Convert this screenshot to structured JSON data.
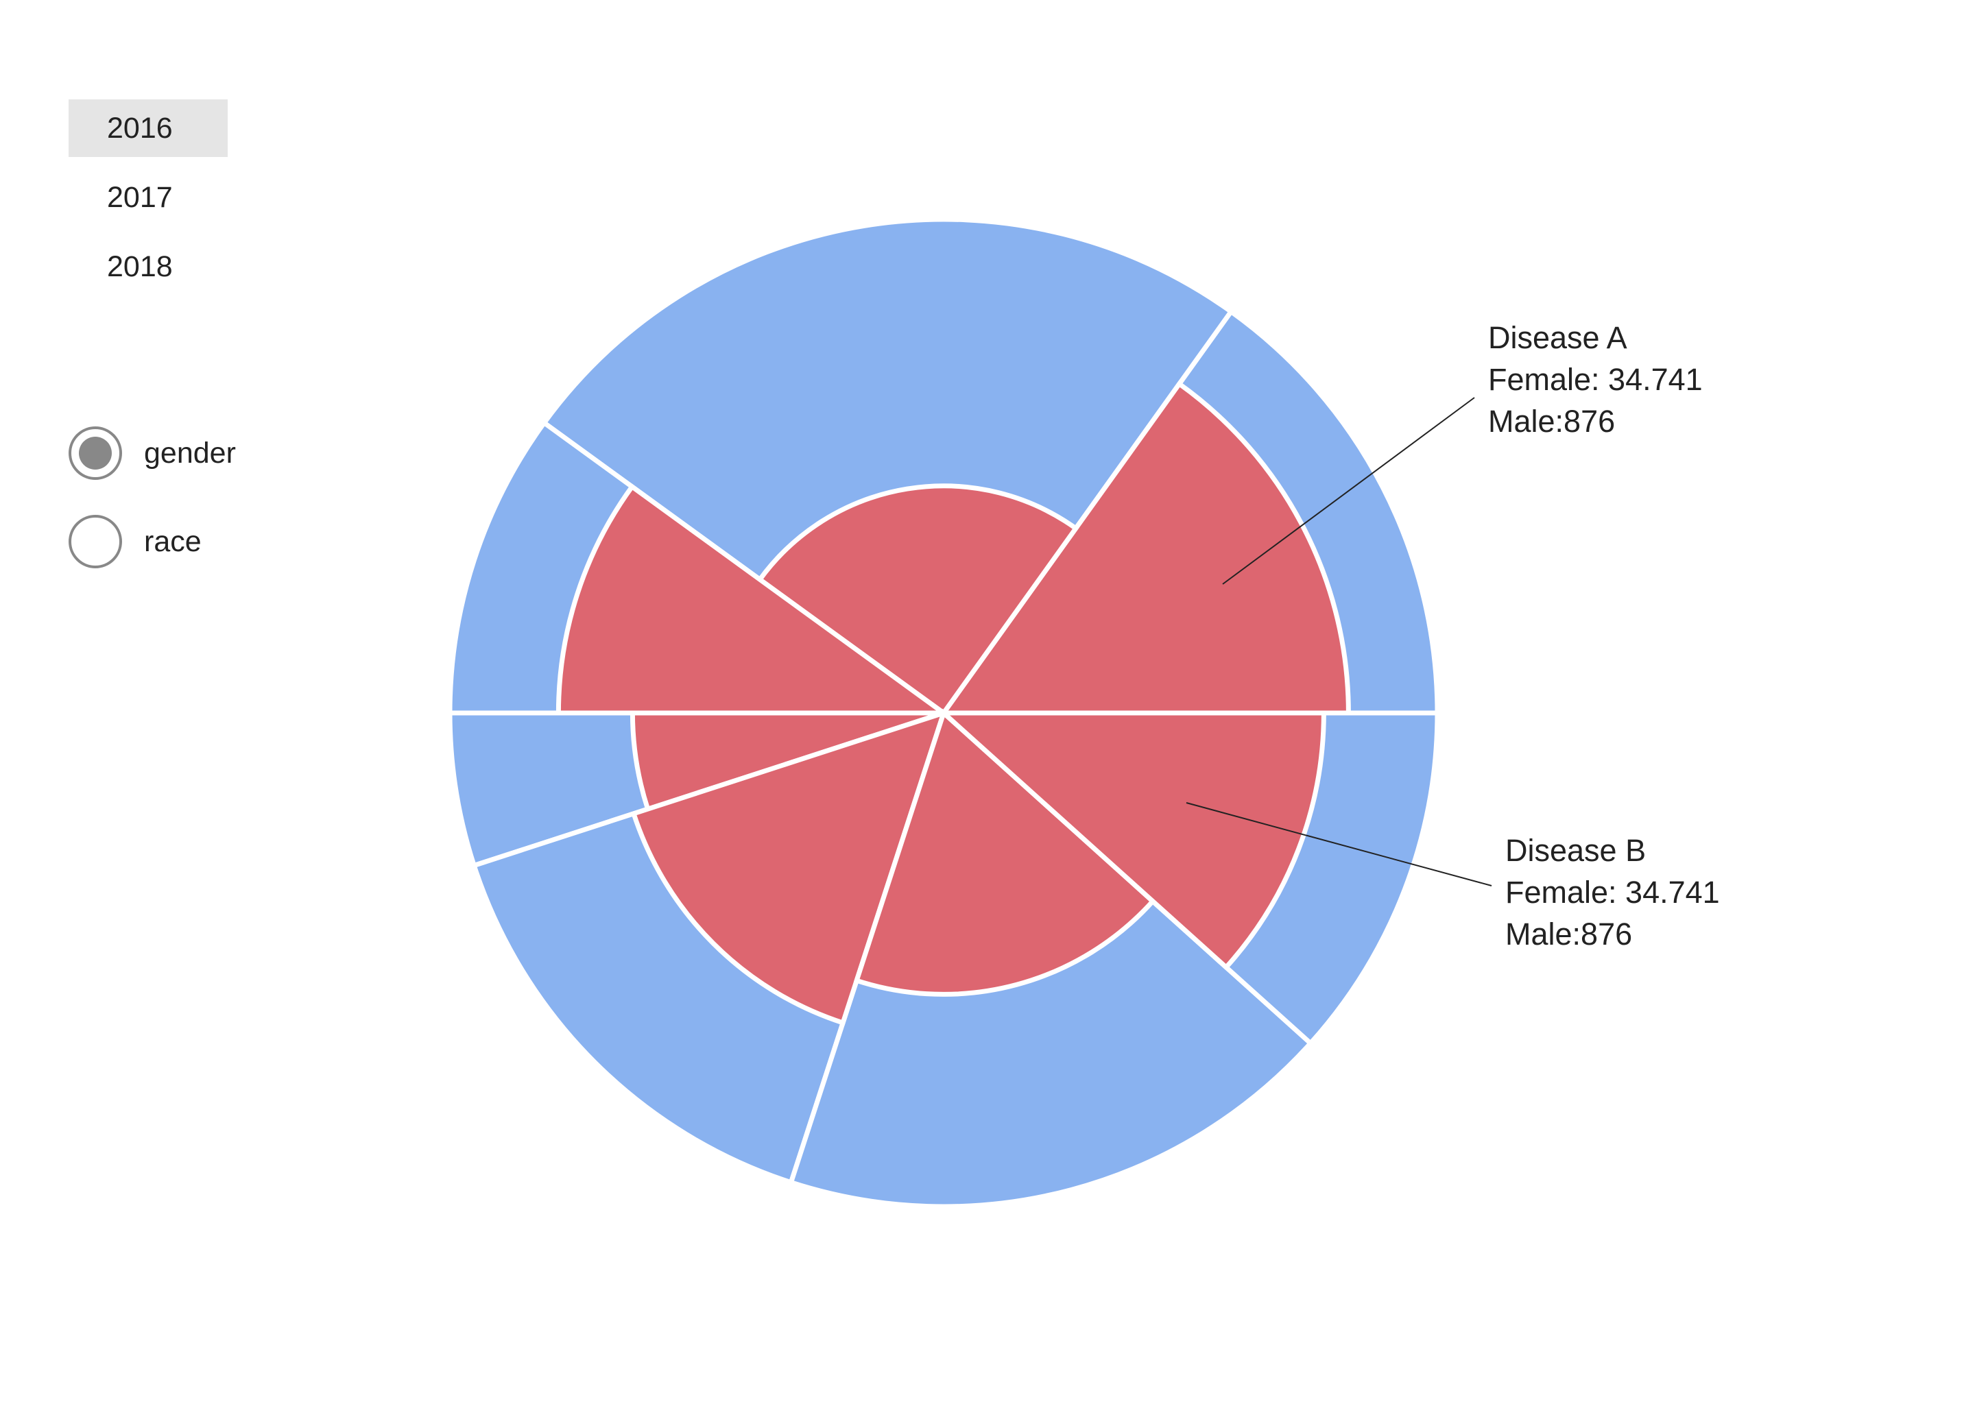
{
  "years": {
    "items": [
      "2016",
      "2017",
      "2018"
    ],
    "selected": "2016"
  },
  "mode": {
    "options": [
      "gender",
      "race"
    ],
    "selected": "gender"
  },
  "colors": {
    "female": "#dd6670",
    "male": "#89b2f0",
    "separator": "#ffffff",
    "selected_bg": "#e5e5e5"
  },
  "chart_data": {
    "type": "nested-polar-area",
    "title": "",
    "series": [
      {
        "name": "",
        "role": "inner"
      },
      {
        "name": "",
        "role": "outer"
      }
    ],
    "sectors": [
      {
        "start_deg": 0,
        "end_deg": 54.4,
        "inner": 0.82,
        "outer": 1.0
      },
      {
        "start_deg": 54.4,
        "end_deg": 144,
        "inner": 0.46,
        "outer": 1.0
      },
      {
        "start_deg": 144,
        "end_deg": 180,
        "inner": 0.78,
        "outer": 1.0
      },
      {
        "start_deg": 180,
        "end_deg": 198,
        "inner": 0.63,
        "outer": 1.0
      },
      {
        "start_deg": 198,
        "end_deg": 252,
        "inner": 0.66,
        "outer": 1.0
      },
      {
        "start_deg": 252,
        "end_deg": 318,
        "inner": 0.57,
        "outer": 1.0
      },
      {
        "start_deg": 318,
        "end_deg": 360,
        "inner": 0.77,
        "outer": 1.0
      }
    ],
    "annotations": [
      {
        "disease": "Disease A",
        "female": "Female: 34.741",
        "male": "Male:876",
        "sector": 0
      },
      {
        "disease": "Disease B",
        "female": "Female: 34.741",
        "male": "Male:876",
        "sector": 6
      }
    ]
  }
}
